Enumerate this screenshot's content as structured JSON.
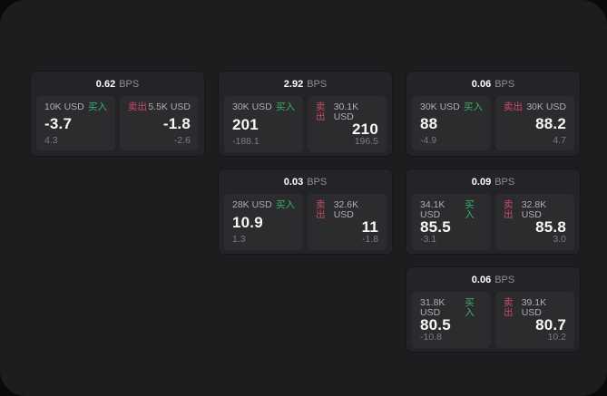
{
  "units": {
    "bps": "BPS"
  },
  "labels": {
    "buy": "买入",
    "sell": "卖出"
  },
  "colors": {
    "buy": "#36b26d",
    "sell": "#cd4a66",
    "surface": "#1d1d1f",
    "card": "#242428",
    "tile": "#2c2c2f"
  },
  "cards": [
    {
      "bps": "0.62",
      "buy": {
        "notional": "10K USD",
        "price": "-3.7",
        "delta": "4.3"
      },
      "sell": {
        "notional": "5.5K USD",
        "price": "-1.8",
        "delta": "-2.6"
      }
    },
    {
      "bps": "2.92",
      "buy": {
        "notional": "30K USD",
        "price": "201",
        "delta": "-188.1"
      },
      "sell": {
        "notional": "30.1K USD",
        "price": "210",
        "delta": "196.5"
      }
    },
    {
      "bps": "0.06",
      "buy": {
        "notional": "30K USD",
        "price": "88",
        "delta": "-4.9"
      },
      "sell": {
        "notional": "30K USD",
        "price": "88.2",
        "delta": "4.7"
      }
    },
    {
      "bps": "0.03",
      "buy": {
        "notional": "28K USD",
        "price": "10.9",
        "delta": "1.3"
      },
      "sell": {
        "notional": "32.6K USD",
        "price": "11",
        "delta": "-1.8"
      }
    },
    {
      "bps": "0.09",
      "buy": {
        "notional": "34.1K USD",
        "price": "85.5",
        "delta": "-3.1"
      },
      "sell": {
        "notional": "32.8K USD",
        "price": "85.8",
        "delta": "3.0"
      }
    },
    {
      "bps": "0.06",
      "buy": {
        "notional": "31.8K USD",
        "price": "80.5",
        "delta": "-10.8"
      },
      "sell": {
        "notional": "39.1K USD",
        "price": "80.7",
        "delta": "10.2"
      }
    }
  ]
}
